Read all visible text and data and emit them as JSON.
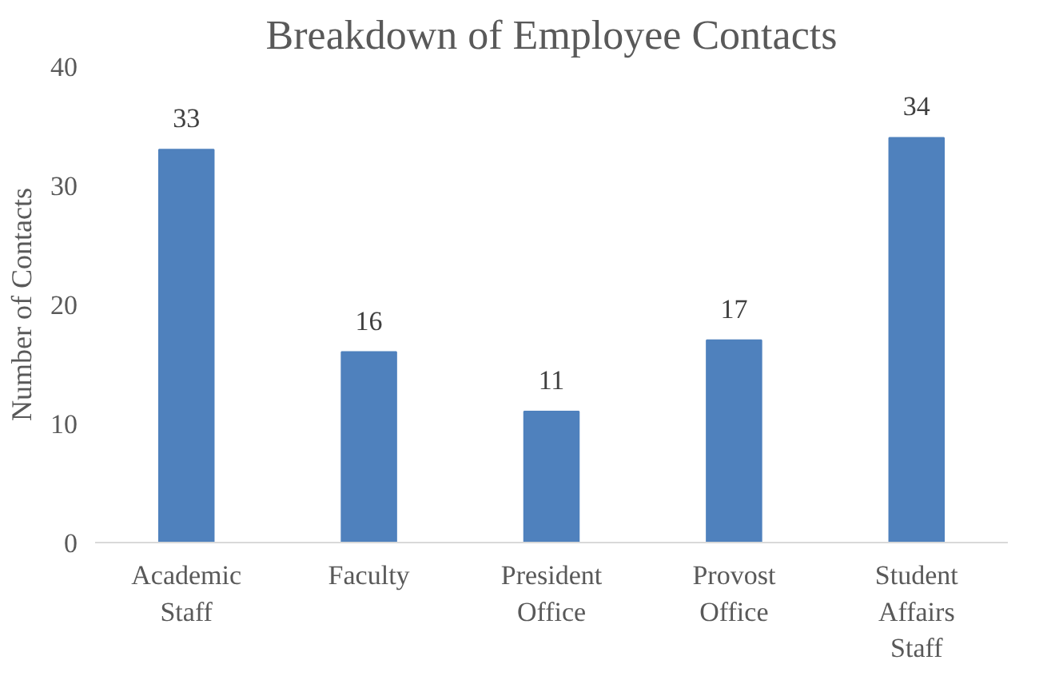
{
  "chart_data": {
    "type": "bar",
    "title": "Breakdown of Employee Contacts",
    "ylabel": "Number of Contacts",
    "categories": [
      "Academic Staff",
      "Faculty",
      "President Office",
      "Provost Office",
      "Student Affairs Staff"
    ],
    "values": [
      33,
      16,
      11,
      17,
      34
    ],
    "color": "#4f81bd",
    "ylim": [
      0,
      40
    ],
    "yticks": [
      0,
      10,
      20,
      30,
      40
    ],
    "grid": false,
    "data_labels": true
  }
}
